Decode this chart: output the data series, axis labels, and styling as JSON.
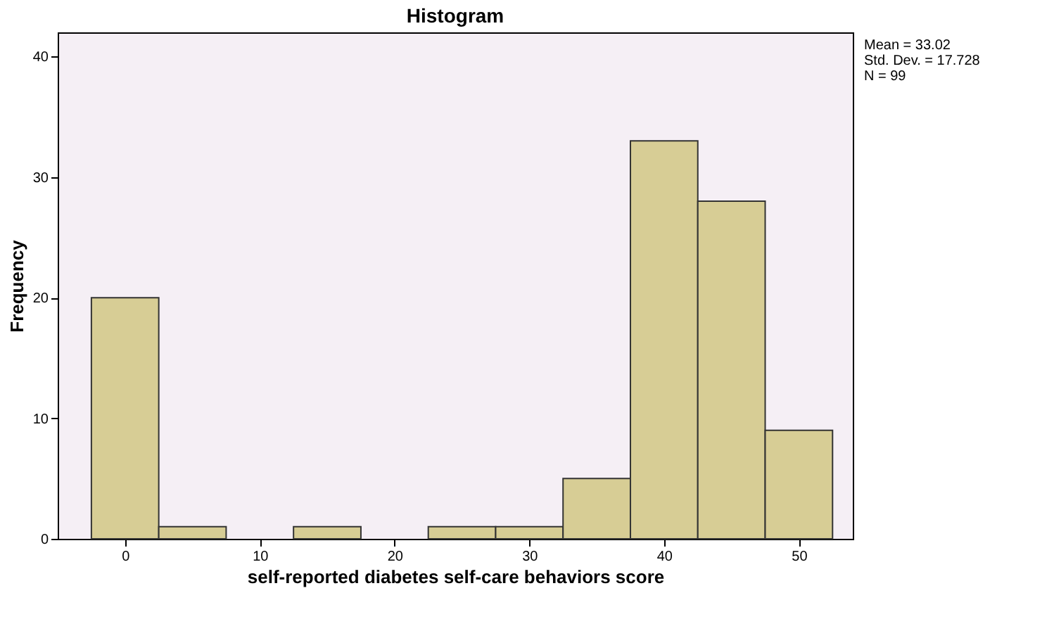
{
  "chart_data": {
    "type": "histogram",
    "title": "Histogram",
    "xlabel": "self-reported diabetes self-care behaviors score",
    "ylabel": "Frequency",
    "bins": [
      -2.5,
      2.5,
      7.5,
      12.5,
      17.5,
      22.5,
      27.5,
      32.5,
      37.5,
      42.5,
      47.5,
      52.5
    ],
    "values": [
      20,
      1,
      0,
      1,
      0,
      1,
      1,
      5,
      33,
      28,
      9
    ],
    "color": "#d7cd95",
    "xlim": [
      -5,
      54
    ],
    "xticks": [
      0,
      10,
      20,
      30,
      40,
      50
    ],
    "ylim": [
      0,
      42
    ],
    "yticks": [
      0,
      10,
      20,
      30,
      40
    ],
    "grid": false,
    "annotations": [
      "Mean = 33.02",
      "Std. Dev. = 17.728",
      "N = 99"
    ]
  }
}
